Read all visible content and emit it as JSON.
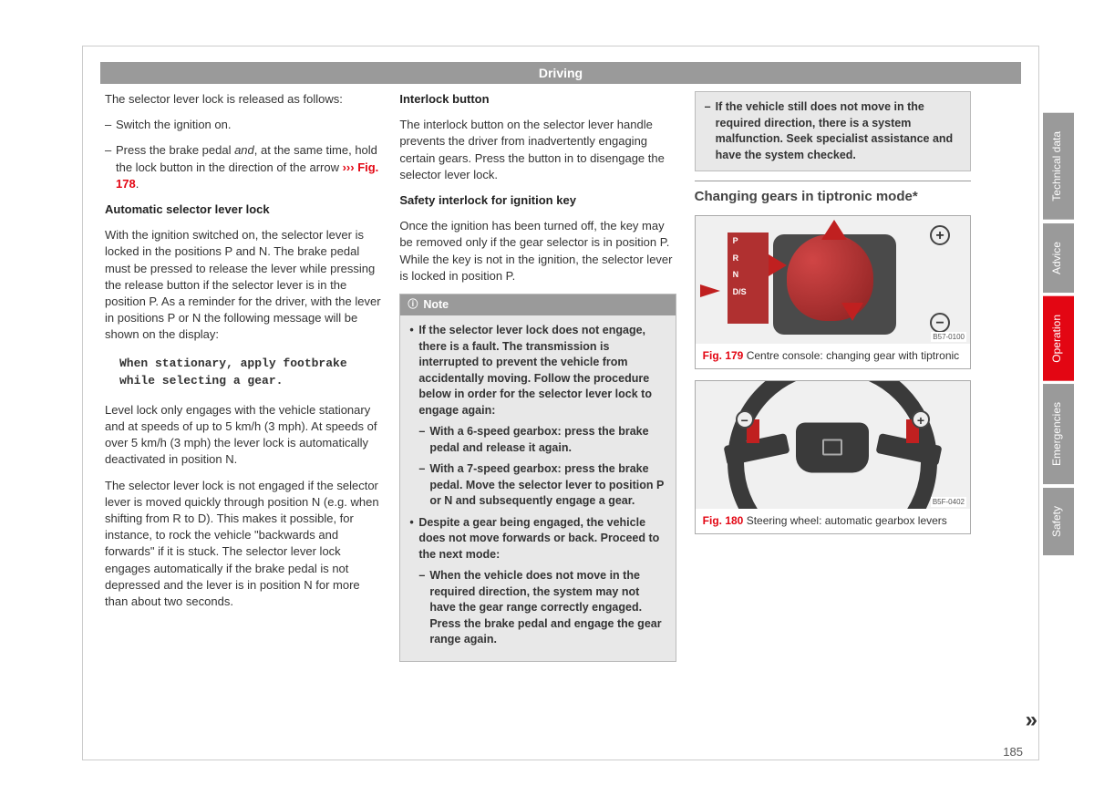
{
  "header": "Driving",
  "page_number": "185",
  "continue": "»",
  "col1": {
    "intro": "The selector lever lock is released as follows:",
    "b1": "Switch the ignition on.",
    "b2a": "Press the brake pedal ",
    "b2_and": "and",
    "b2b": ", at the same time, hold the lock button in the direction of the arrow ",
    "b2_ref": "››› Fig. 178",
    "b2c": ".",
    "h1": "Automatic selector lever lock",
    "p1": "With the ignition switched on, the selector lever is locked in the positions P and N. The brake pedal must be pressed to release the lever while pressing the release button if the selector lever is in the position P. As a reminder for the driver, with the lever in positions P or N the following message will be shown on the display:",
    "msg": "When stationary, apply footbrake while selecting a gear.",
    "p2": "Level lock only engages with the vehicle stationary and at speeds of up to 5 km/h (3 mph). At speeds of over 5 km/h (3 mph) the lever lock is automatically deactivated in position N.",
    "p3": "The selector lever lock is not engaged if the selector lever is moved quickly through position N (e.g. when shifting from R to D). This makes it possible, for instance, to rock the vehicle \"backwards and forwards\" if it is stuck. The selector lever lock engages automatically if the brake pedal is not depressed and the lever is in position N for more than about two seconds."
  },
  "col2": {
    "h1": "Interlock button",
    "p1": "The interlock button on the selector lever handle prevents the driver from inadvertently engaging certain gears. Press the button in to disengage the selector lever lock.",
    "h2": "Safety interlock for ignition key",
    "p2": "Once the ignition has been turned off, the key may be removed only if the gear selector is in position P. While the key is not in the ignition, the selector lever is locked in position P.",
    "note_title": "Note",
    "note": {
      "b1": "If the selector lever lock does not engage, there is a fault. The transmission is interrupted to prevent the vehicle from accidentally moving. Follow the procedure below in order for the selector lever lock to engage again:",
      "s1": "With a 6-speed gearbox: press the brake pedal and release it again.",
      "s2": "With a 7-speed gearbox: press the brake pedal. Move the selector lever to position P or N and subsequently engage a gear.",
      "b2": "Despite a gear being engaged, the vehicle does not move forwards or back. Proceed to the next mode:",
      "s3": "When the vehicle does not move in the required direction, the system may not have the gear range correctly engaged. Press the brake pedal and engage the gear range again."
    }
  },
  "col3": {
    "warn": "If the vehicle still does not move in the required direction, there is a system malfunction. Seek specialist assistance and have the system checked.",
    "section": "Changing gears in tiptronic mode*",
    "fig179": {
      "num": "Fig. 179",
      "caption": "Centre console: changing gear with tiptronic",
      "code": "B57-0100",
      "labels": [
        "P",
        "R",
        "N",
        "D/S"
      ]
    },
    "fig180": {
      "num": "Fig. 180",
      "caption": "Steering wheel: automatic gearbox levers",
      "code": "B5F-0402"
    }
  },
  "tabs": [
    "Technical data",
    "Advice",
    "Operation",
    "Emergencies",
    "Safety"
  ],
  "active_tab": 2,
  "colors": {
    "gray_header": "#9a9a9a",
    "red_accent": "#e30613",
    "note_bg": "#e8e8e8",
    "border": "#bbbbbb"
  }
}
